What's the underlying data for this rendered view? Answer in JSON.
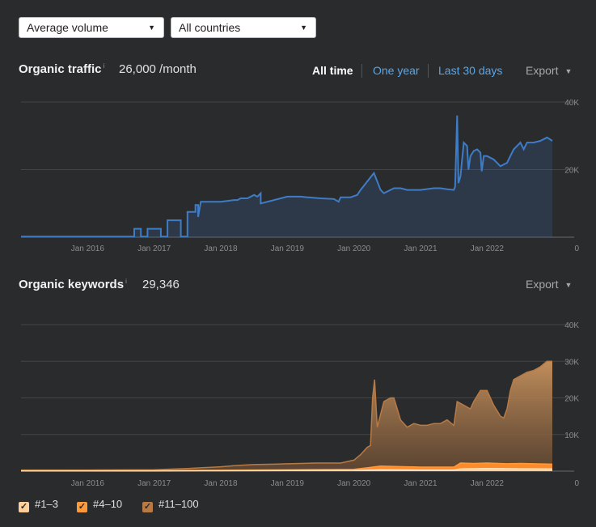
{
  "filters": {
    "volume_select": "Average volume",
    "country_select": "All countries"
  },
  "traffic_panel": {
    "title": "Organic traffic",
    "info_glyph": "i",
    "value": "26,000 /month",
    "tabs": [
      "All time",
      "One year",
      "Last 30 days"
    ],
    "active_tab": "All time",
    "export_label": "Export"
  },
  "keywords_panel": {
    "title": "Organic keywords",
    "info_glyph": "i",
    "value": "29,346",
    "export_label": "Export"
  },
  "legend": [
    {
      "label": "#1–3",
      "color": "#ffcf9a"
    },
    {
      "label": "#4–10",
      "color": "#ff9a3a"
    },
    {
      "label": "#11–100",
      "color": "#b87a44"
    }
  ],
  "colors": {
    "background": "#2a2b2d",
    "traffic_line": "#3f7cc6",
    "tab_link": "#5aa6e8"
  },
  "chart_data": [
    {
      "type": "line",
      "name": "organic-traffic",
      "x_tick_labels": [
        "Jan 2016",
        "Jan 2017",
        "Jan 2018",
        "Jan 2019",
        "Jan 2020",
        "Jan 2021",
        "Jan 2022"
      ],
      "y_tick_labels": [
        "40K",
        "20K",
        "0"
      ],
      "xlim": [
        2015.0,
        2022.98
      ],
      "ylim": [
        0,
        40000
      ],
      "series": [
        {
          "name": "",
          "x": [
            2015.0,
            2016.7,
            2016.7,
            2016.8,
            2016.8,
            2016.9,
            2016.9,
            2017.1,
            2017.1,
            2017.2,
            2017.2,
            2017.4,
            2017.4,
            2017.5,
            2017.5,
            2017.62,
            2017.62,
            2017.66,
            2017.66,
            2017.7,
            2017.9,
            2018.0,
            2018.2,
            2018.25,
            2018.3,
            2018.4,
            2018.5,
            2018.55,
            2018.6,
            2018.6,
            2018.9,
            2019.0,
            2019.2,
            2019.3,
            2019.5,
            2019.7,
            2019.77,
            2019.8,
            2019.95,
            2020.05,
            2020.1,
            2020.3,
            2020.4,
            2020.45,
            2020.55,
            2020.6,
            2020.7,
            2020.8,
            2020.9,
            2021.0,
            2021.2,
            2021.3,
            2021.4,
            2021.5,
            2021.52,
            2021.55,
            2021.57,
            2021.6,
            2021.65,
            2021.7,
            2021.72,
            2021.75,
            2021.8,
            2021.85,
            2021.9,
            2021.92,
            2021.95,
            2022.0,
            2022.1,
            2022.2,
            2022.3,
            2022.4,
            2022.5,
            2022.55,
            2022.6,
            2022.7,
            2022.8,
            2022.9,
            2022.98
          ],
          "y": [
            200,
            200,
            2500,
            2500,
            200,
            200,
            2500,
            2500,
            200,
            200,
            5000,
            5000,
            200,
            200,
            7500,
            7500,
            9500,
            9500,
            6000,
            10500,
            10500,
            10500,
            11000,
            11000,
            11500,
            11500,
            12500,
            12000,
            13000,
            10000,
            11500,
            12000,
            12000,
            11800,
            11500,
            11300,
            10500,
            11800,
            11800,
            12500,
            14000,
            19000,
            14000,
            13000,
            14000,
            14500,
            14500,
            14000,
            14000,
            14000,
            14500,
            14500,
            14200,
            14000,
            15000,
            36000,
            16000,
            18000,
            28000,
            27000,
            20000,
            24000,
            25500,
            26000,
            25000,
            19500,
            24000,
            24000,
            23000,
            21000,
            22000,
            26000,
            28000,
            26000,
            28000,
            28000,
            28500,
            29500,
            28500
          ]
        }
      ]
    },
    {
      "type": "area",
      "name": "organic-keywords",
      "x_tick_labels": [
        "Jan 2016",
        "Jan 2017",
        "Jan 2018",
        "Jan 2019",
        "Jan 2020",
        "Jan 2021",
        "Jan 2022"
      ],
      "y_tick_labels": [
        "40K",
        "30K",
        "20K",
        "10K",
        "0"
      ],
      "xlim": [
        2015.0,
        2022.98
      ],
      "ylim": [
        0,
        40000
      ],
      "series": [
        {
          "name": "#11–100",
          "x": [
            2015.0,
            2016.0,
            2017.0,
            2017.5,
            2018.0,
            2018.2,
            2018.3,
            2018.5,
            2018.8,
            2019.0,
            2019.2,
            2019.4,
            2019.6,
            2019.8,
            2020.0,
            2020.1,
            2020.2,
            2020.25,
            2020.28,
            2020.31,
            2020.35,
            2020.45,
            2020.55,
            2020.6,
            2020.65,
            2020.7,
            2020.8,
            2020.9,
            2021.0,
            2021.1,
            2021.2,
            2021.3,
            2021.4,
            2021.5,
            2021.55,
            2021.65,
            2021.75,
            2021.8,
            2021.9,
            2022.0,
            2022.1,
            2022.2,
            2022.25,
            2022.3,
            2022.35,
            2022.4,
            2022.5,
            2022.6,
            2022.7,
            2022.8,
            2022.9,
            2022.98
          ],
          "y": [
            300,
            300,
            400,
            700,
            1200,
            1500,
            1600,
            1800,
            1900,
            2000,
            2100,
            2200,
            2200,
            2200,
            3000,
            4500,
            6500,
            7000,
            20000,
            25000,
            12000,
            19000,
            20000,
            20000,
            17000,
            14000,
            12000,
            13000,
            12500,
            12500,
            13000,
            13000,
            14000,
            12500,
            19000,
            18000,
            17000,
            19000,
            22000,
            22000,
            18000,
            15000,
            14500,
            17000,
            22000,
            25000,
            26000,
            27000,
            27500,
            28500,
            30000,
            30000
          ]
        },
        {
          "name": "#4–10",
          "x": [
            2015.0,
            2017.0,
            2018.0,
            2019.0,
            2020.0,
            2020.2,
            2020.4,
            2021.0,
            2021.5,
            2021.6,
            2021.8,
            2022.0,
            2022.3,
            2022.5,
            2022.98
          ],
          "y": [
            100,
            150,
            250,
            350,
            500,
            900,
            1400,
            1100,
            1100,
            2200,
            2100,
            2200,
            2000,
            2100,
            1900
          ]
        },
        {
          "name": "#1–3",
          "x": [
            2015.0,
            2017.0,
            2018.0,
            2019.0,
            2020.0,
            2020.4,
            2021.0,
            2021.5,
            2021.6,
            2022.0,
            2022.5,
            2022.98
          ],
          "y": [
            50,
            70,
            100,
            150,
            200,
            400,
            300,
            300,
            600,
            700,
            650,
            600
          ]
        }
      ]
    }
  ]
}
